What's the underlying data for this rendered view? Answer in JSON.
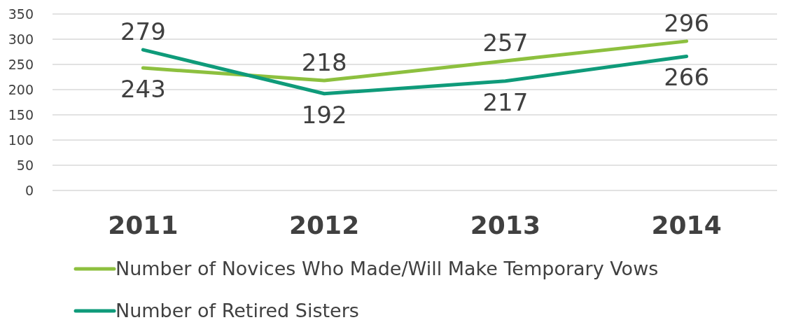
{
  "chart_data": {
    "type": "line",
    "categories": [
      "2011",
      "2012",
      "2013",
      "2014"
    ],
    "series": [
      {
        "name": "Number of Novices Who Made/Will Make Temporary Vows",
        "color": "#8dc03f",
        "values": [
          243,
          218,
          257,
          296
        ]
      },
      {
        "name": "Number of Retired Sisters",
        "color": "#0f9b7a",
        "values": [
          279,
          192,
          217,
          266
        ]
      }
    ],
    "ylim": [
      0,
      350
    ],
    "yticks": [
      0,
      50,
      100,
      150,
      200,
      250,
      300,
      350
    ],
    "grid": "y",
    "legend": "bottom",
    "data_labels": true,
    "marker": "none",
    "line_style": "solid"
  }
}
